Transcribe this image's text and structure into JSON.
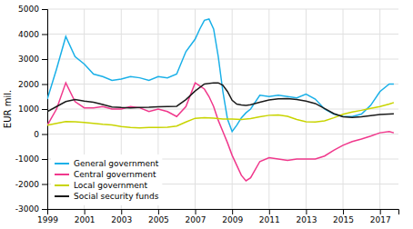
{
  "chart_data": {
    "type": "line",
    "ylabel": "EUR mil.",
    "xlim": [
      1999,
      2018.0
    ],
    "ylim": [
      -3000,
      5000
    ],
    "xticks": [
      1999,
      2001,
      2003,
      2005,
      2007,
      2009,
      2011,
      2013,
      2015,
      2017
    ],
    "yticks": [
      -3000,
      -2000,
      -1000,
      0,
      1000,
      2000,
      3000,
      4000,
      5000
    ],
    "grid": true,
    "legend": "lower-left",
    "series": [
      {
        "name": "General government",
        "color": "#1ab0e8",
        "x": [
          1999.0,
          1999.5,
          2000.0,
          2000.5,
          2001.0,
          2001.5,
          2002.0,
          2002.5,
          2003.0,
          2003.5,
          2004.0,
          2004.5,
          2005.0,
          2005.5,
          2006.0,
          2006.5,
          2007.0,
          2007.25,
          2007.5,
          2007.75,
          2008.0,
          2008.25,
          2008.5,
          2008.75,
          2009.0,
          2009.25,
          2009.5,
          2009.75,
          2010.0,
          2010.5,
          2011.0,
          2011.5,
          2012.0,
          2012.5,
          2013.0,
          2013.5,
          2014.0,
          2014.5,
          2015.0,
          2015.5,
          2016.0,
          2016.5,
          2017.0,
          2017.5,
          2017.75
        ],
        "values": [
          1400,
          2600,
          3900,
          3100,
          2800,
          2400,
          2300,
          2150,
          2200,
          2300,
          2250,
          2150,
          2300,
          2250,
          2400,
          3300,
          3800,
          4200,
          4550,
          4600,
          4200,
          3100,
          1700,
          600,
          100,
          350,
          650,
          850,
          1000,
          1550,
          1500,
          1550,
          1500,
          1450,
          1600,
          1400,
          1000,
          800,
          700,
          700,
          800,
          1150,
          1700,
          2000,
          2000
        ]
      },
      {
        "name": "Central government",
        "color": "#f0388c",
        "x": [
          1999.0,
          1999.5,
          2000.0,
          2000.5,
          2001.0,
          2001.5,
          2002.0,
          2002.5,
          2003.0,
          2003.5,
          2004.0,
          2004.5,
          2005.0,
          2005.5,
          2006.0,
          2006.5,
          2007.0,
          2007.5,
          2007.75,
          2008.0,
          2008.25,
          2008.5,
          2008.75,
          2009.0,
          2009.25,
          2009.5,
          2009.75,
          2010.0,
          2010.5,
          2011.0,
          2011.5,
          2012.0,
          2012.5,
          2013.0,
          2013.5,
          2014.0,
          2014.5,
          2015.0,
          2015.5,
          2016.0,
          2016.5,
          2017.0,
          2017.5,
          2017.75
        ],
        "values": [
          350,
          1000,
          2050,
          1300,
          1050,
          1050,
          1100,
          1000,
          1000,
          1100,
          1050,
          900,
          1000,
          900,
          700,
          1100,
          2050,
          1800,
          1500,
          1100,
          550,
          100,
          -350,
          -850,
          -1250,
          -1650,
          -1870,
          -1750,
          -1100,
          -950,
          -1000,
          -1050,
          -1000,
          -1000,
          -1000,
          -880,
          -650,
          -450,
          -300,
          -200,
          -80,
          50,
          100,
          50
        ]
      },
      {
        "name": "Local government",
        "color": "#c8d400",
        "x": [
          1999.0,
          1999.5,
          2000.0,
          2000.5,
          2001.0,
          2001.5,
          2002.0,
          2002.5,
          2003.0,
          2003.5,
          2004.0,
          2004.5,
          2005.0,
          2005.5,
          2006.0,
          2006.5,
          2007.0,
          2007.5,
          2008.0,
          2008.5,
          2009.0,
          2009.5,
          2010.0,
          2010.5,
          2011.0,
          2011.5,
          2012.0,
          2012.5,
          2013.0,
          2013.5,
          2014.0,
          2014.5,
          2015.0,
          2015.5,
          2016.0,
          2016.5,
          2017.0,
          2017.5,
          2017.75
        ],
        "values": [
          350,
          430,
          500,
          490,
          460,
          430,
          390,
          360,
          300,
          260,
          250,
          260,
          260,
          270,
          320,
          480,
          630,
          650,
          640,
          600,
          600,
          580,
          620,
          690,
          750,
          760,
          710,
          580,
          490,
          480,
          530,
          650,
          790,
          880,
          950,
          1030,
          1100,
          1200,
          1260
        ]
      },
      {
        "name": "Social security funds",
        "color": "#1a1a1a",
        "x": [
          1999.0,
          1999.5,
          2000.0,
          2000.5,
          2001.0,
          2001.5,
          2002.0,
          2002.5,
          2003.0,
          2003.5,
          2004.0,
          2004.5,
          2005.0,
          2005.5,
          2006.0,
          2006.5,
          2007.0,
          2007.5,
          2008.0,
          2008.25,
          2008.5,
          2008.75,
          2009.0,
          2009.25,
          2009.5,
          2009.75,
          2010.0,
          2010.5,
          2011.0,
          2011.5,
          2012.0,
          2012.5,
          2013.0,
          2013.5,
          2014.0,
          2014.5,
          2015.0,
          2015.5,
          2016.0,
          2016.5,
          2017.0,
          2017.5,
          2017.75
        ],
        "values": [
          900,
          1100,
          1300,
          1380,
          1320,
          1270,
          1180,
          1080,
          1060,
          1050,
          1060,
          1070,
          1095,
          1100,
          1110,
          1380,
          1720,
          2000,
          2050,
          2050,
          1950,
          1700,
          1350,
          1200,
          1160,
          1150,
          1170,
          1270,
          1360,
          1410,
          1420,
          1380,
          1320,
          1220,
          1020,
          820,
          690,
          660,
          690,
          740,
          780,
          800,
          810
        ]
      }
    ]
  }
}
